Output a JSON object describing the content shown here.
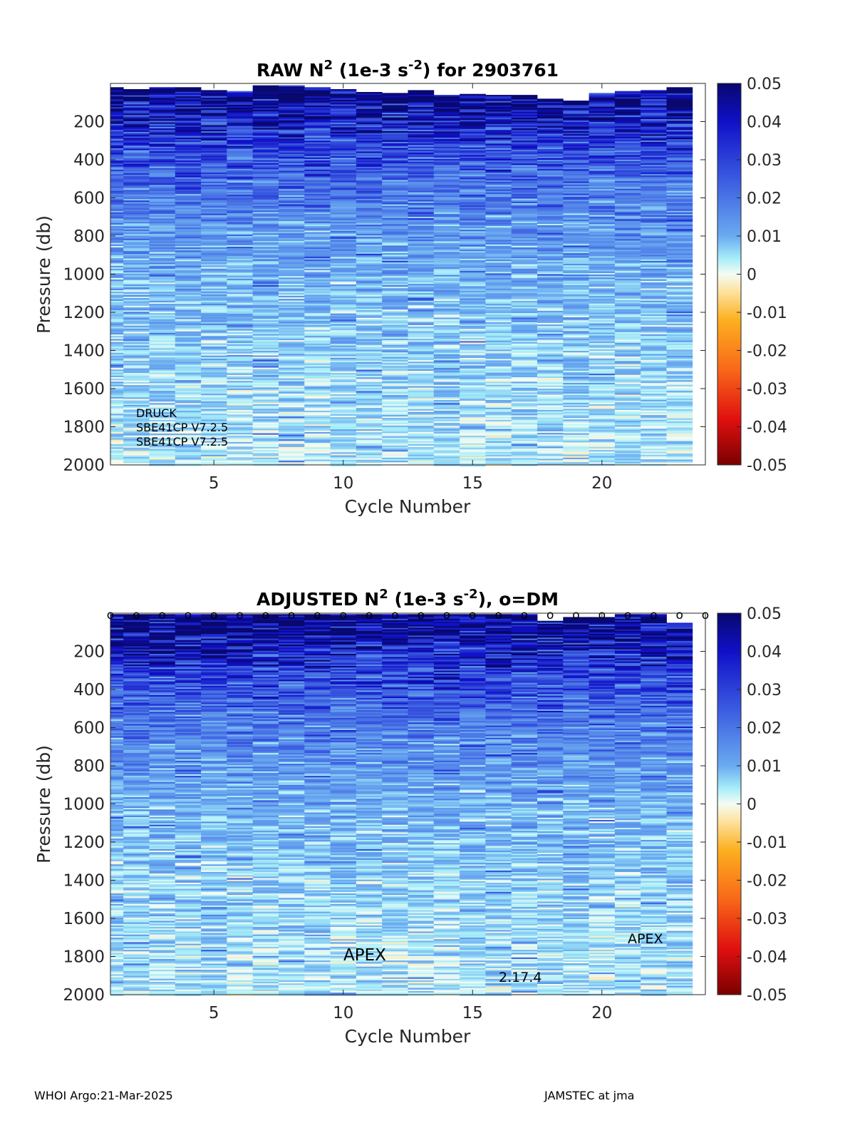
{
  "chart_data": [
    {
      "type": "heatmap",
      "title_main": "RAW N",
      "title_exp1": "2",
      "title_mid": " (1e-3 s",
      "title_exp2": "-2",
      "title_end": ") for 2903761",
      "xlabel": "Cycle Number",
      "ylabel": "Pressure (db)",
      "xlim": [
        1,
        24
      ],
      "ylim": [
        2000,
        0
      ],
      "x_ticks": [
        5,
        10,
        15,
        20
      ],
      "y_ticks": [
        200,
        400,
        600,
        800,
        1000,
        1200,
        1400,
        1600,
        1800,
        2000
      ],
      "cycles": [
        1,
        2,
        3,
        4,
        5,
        6,
        7,
        8,
        9,
        10,
        11,
        12,
        13,
        14,
        15,
        16,
        17,
        18,
        19,
        20,
        21,
        22,
        23
      ],
      "top_pressures": [
        20,
        30,
        20,
        20,
        35,
        40,
        10,
        10,
        20,
        30,
        45,
        50,
        35,
        60,
        55,
        60,
        60,
        80,
        90,
        50,
        40,
        35,
        20
      ],
      "colorbar": {
        "min": -0.05,
        "max": 0.05,
        "ticks": [
          "0.05",
          "0.04",
          "0.03",
          "0.02",
          "0.01",
          "0",
          "-0.01",
          "-0.02",
          "-0.03",
          "-0.04",
          "-0.05"
        ]
      },
      "annotations": [
        "DRUCK",
        "SBE41CP V7.2.5",
        "SBE41CP V7.2.5"
      ],
      "dm_markers": false
    },
    {
      "type": "heatmap",
      "title_main": "ADJUSTED N",
      "title_exp1": "2",
      "title_mid": " (1e-3 s",
      "title_exp2": "-2",
      "title_end": "), o=DM",
      "xlabel": "Cycle Number",
      "ylabel": "Pressure (db)",
      "xlim": [
        1,
        24
      ],
      "ylim": [
        2000,
        0
      ],
      "x_ticks": [
        5,
        10,
        15,
        20
      ],
      "y_ticks": [
        200,
        400,
        600,
        800,
        1000,
        1200,
        1400,
        1600,
        1800,
        2000
      ],
      "cycles": [
        1,
        2,
        3,
        4,
        5,
        6,
        7,
        8,
        9,
        10,
        11,
        12,
        13,
        14,
        15,
        16,
        17,
        18,
        19,
        20,
        21,
        22,
        23
      ],
      "top_pressures": [
        5,
        5,
        5,
        5,
        5,
        5,
        5,
        5,
        5,
        5,
        5,
        5,
        5,
        5,
        5,
        5,
        5,
        40,
        20,
        20,
        5,
        5,
        50
      ],
      "colorbar": {
        "min": -0.05,
        "max": 0.05,
        "ticks": [
          "0.05",
          "0.04",
          "0.03",
          "0.02",
          "0.01",
          "0",
          "-0.01",
          "-0.02",
          "-0.03",
          "-0.04",
          "-0.05"
        ]
      },
      "annotations": [
        "APEX",
        "2.17.4",
        "APEX"
      ],
      "dm_marker_symbol": "o",
      "dm_cycles": [
        1,
        2,
        3,
        4,
        5,
        6,
        7,
        8,
        9,
        10,
        11,
        12,
        13,
        14,
        15,
        16,
        17,
        18,
        19,
        20,
        21,
        22,
        23,
        24
      ]
    }
  ],
  "footer": {
    "left": "WHOI Argo:21-Mar-2025",
    "right": "JAMSTEC at jma"
  }
}
